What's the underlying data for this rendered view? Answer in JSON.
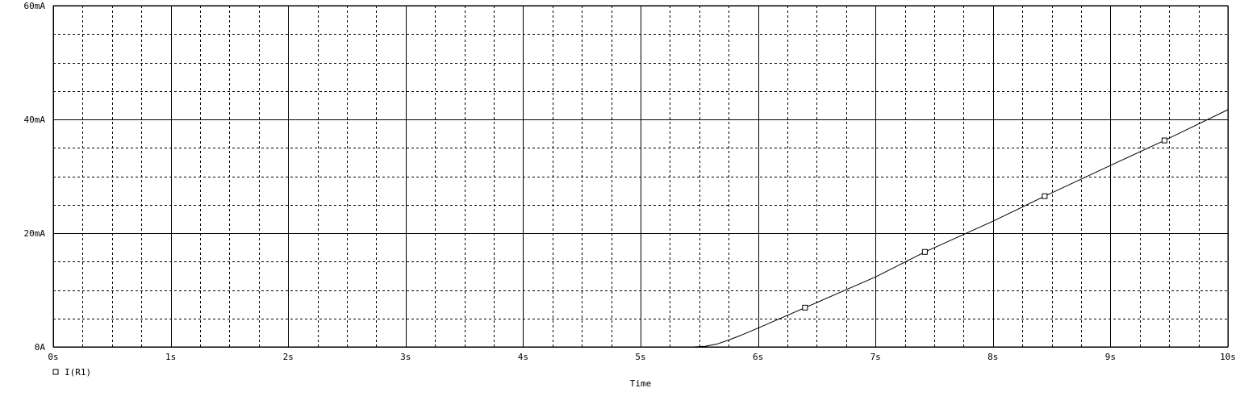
{
  "chart_data": {
    "type": "line",
    "xlabel": "Time",
    "ylabel": "",
    "xlim": [
      0,
      10
    ],
    "ylim": [
      0,
      60
    ],
    "x_ticks": [
      0,
      1,
      2,
      3,
      4,
      5,
      6,
      7,
      8,
      9,
      10
    ],
    "x_tick_labels": [
      "0s",
      "1s",
      "2s",
      "3s",
      "4s",
      "5s",
      "6s",
      "7s",
      "8s",
      "9s",
      "10s"
    ],
    "y_ticks": [
      0,
      20,
      40,
      60
    ],
    "y_tick_labels": [
      "0A",
      "20mA",
      "40mA",
      "60mA"
    ],
    "grid": true,
    "legend_position": "bottom-left",
    "series": [
      {
        "name": "I(R1)",
        "marker": "square",
        "x": [
          5.45,
          5.55,
          5.65,
          5.75,
          5.85,
          6.0,
          6.4,
          7.0,
          7.42,
          8.0,
          8.44,
          9.0,
          9.46,
          10.0
        ],
        "y": [
          0.0,
          0.1,
          0.5,
          1.2,
          2.0,
          3.3,
          6.9,
          12.3,
          16.7,
          22.1,
          26.5,
          31.9,
          36.3,
          41.7
        ],
        "marker_x": [
          6.4,
          7.42,
          8.44,
          9.46
        ],
        "marker_y": [
          6.9,
          16.7,
          26.5,
          36.3
        ]
      }
    ]
  }
}
